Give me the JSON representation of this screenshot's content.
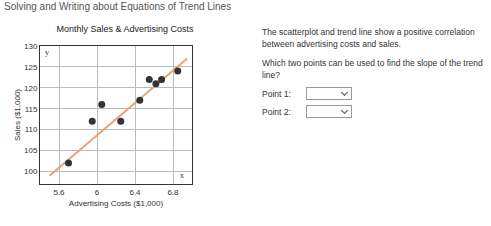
{
  "header": "Solving and Writing about Equations of Trend Lines",
  "chart_data": {
    "type": "scatter",
    "title": "Monthly Sales & Advertising Costs",
    "x_label": "Advertising Costs ($1,000)",
    "y_label": "Sales ($1,000)",
    "x": [
      5.7,
      5.95,
      6.05,
      6.25,
      6.45,
      6.55,
      6.62,
      6.68,
      6.85
    ],
    "values": [
      102,
      112,
      116,
      112,
      117,
      122,
      121,
      122,
      124
    ],
    "color": "#333333",
    "marker": "circle",
    "trend_line": {
      "x": [
        5.5,
        6.95
      ],
      "values": [
        99,
        127
      ],
      "color": "#e8a47c"
    },
    "annotations": [
      {
        "text": "y",
        "axis": "y"
      },
      {
        "text": "x",
        "axis": "x"
      }
    ],
    "xlim": [
      5.4,
      7.0
    ],
    "xticks": [
      5.6,
      6,
      6.4,
      6.8
    ],
    "ylim": [
      97,
      130
    ],
    "yticks": [
      100,
      105,
      110,
      115,
      120,
      125,
      130
    ],
    "grid": true
  },
  "panel": {
    "text": "The scatterplot and trend line show a positive correlation between advertising costs and sales.",
    "question": "Which two points can be used to find the slope of the trend line?",
    "fields": [
      "Point 1:",
      "Point 2:"
    ]
  }
}
